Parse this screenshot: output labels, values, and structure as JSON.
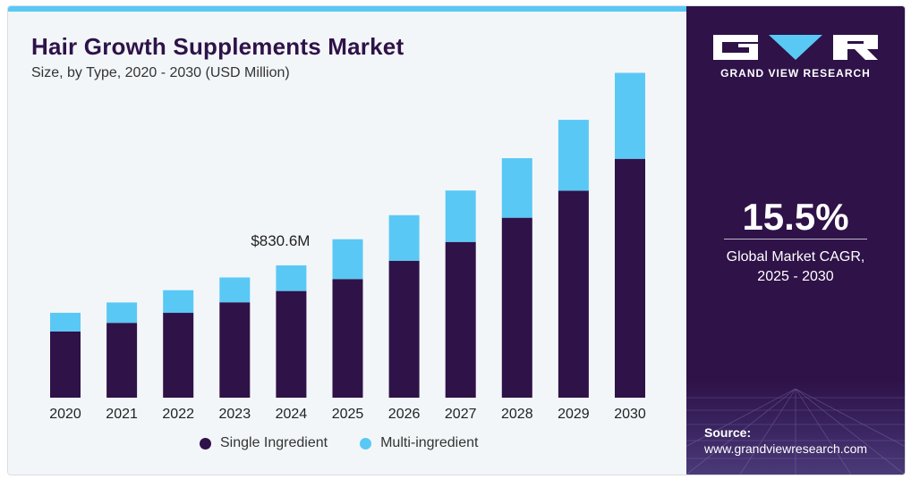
{
  "header": {
    "title": "Hair Growth Supplements Market",
    "subtitle": "Size, by Type, 2020 - 2030 (USD Million)"
  },
  "sidebar": {
    "brand": "GRAND VIEW RESEARCH",
    "cagr_value": "15.5%",
    "cagr_label_line1": "Global Market CAGR,",
    "cagr_label_line2": "2025 - 2030",
    "source_label": "Source:",
    "source_url": "www.grandviewresearch.com"
  },
  "colors": {
    "single": "#2e1248",
    "multi": "#5ac8f5",
    "accent_bar": "#5ac8f5",
    "panel": "#2e1248"
  },
  "chart_data": {
    "type": "bar",
    "stacked": true,
    "categories": [
      "2020",
      "2021",
      "2022",
      "2023",
      "2024",
      "2025",
      "2026",
      "2027",
      "2028",
      "2029",
      "2030"
    ],
    "series": [
      {
        "name": "Single Ingredient",
        "values": [
          416,
          470,
          533,
          599,
          670,
          745,
          860,
          978,
          1130,
          1300,
          1500
        ]
      },
      {
        "name": "Multi-ingredient",
        "values": [
          117,
          128,
          142,
          156,
          161,
          250,
          286,
          323,
          374,
          445,
          540
        ]
      }
    ],
    "annotation": {
      "category": "2024",
      "text": "$830.6M"
    },
    "ylim": [
      0,
      2200
    ],
    "legend_position": "bottom",
    "grid": false
  }
}
